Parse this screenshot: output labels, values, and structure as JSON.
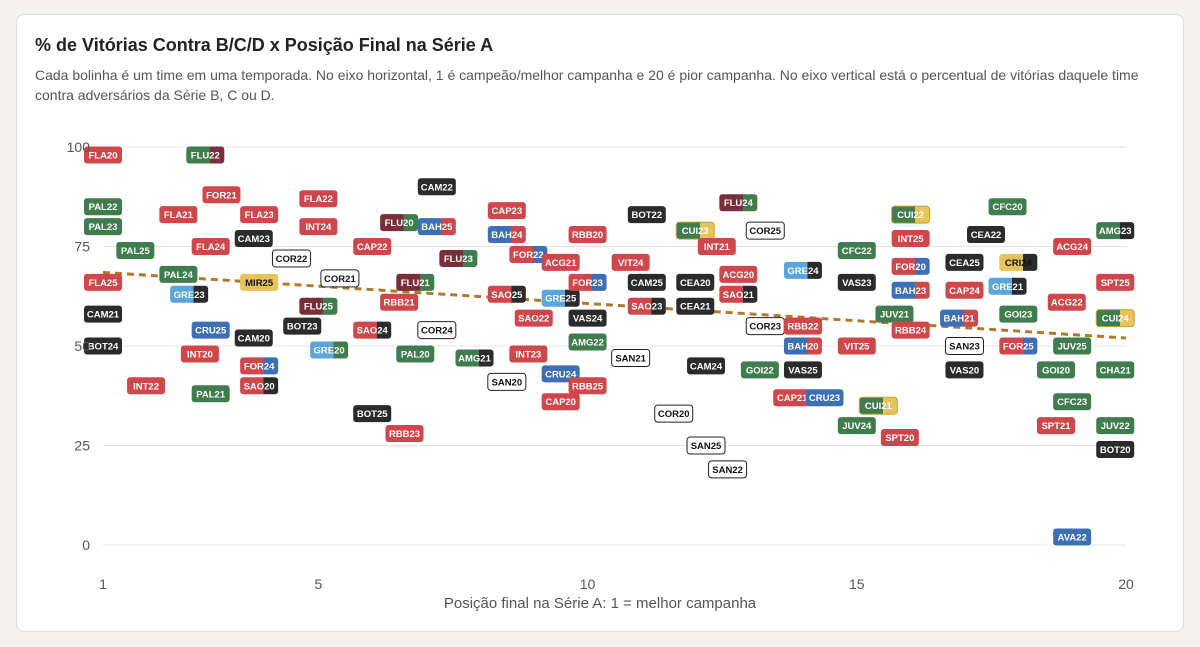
{
  "title": "% de Vitórias Contra B/C/D x Posição Final na Série A",
  "subtitle": "Cada bolinha é um time em uma temporada. No eixo horizontal, 1 é campeão/melhor campanha e 20 é pior campanha. No eixo vertical está o percentual de vitórias daquele time contra adversários da Série B, C ou D.",
  "colors": {
    "red": "#d0474b",
    "green": "#3f7d4e",
    "black": "#2b2b2b",
    "blue": "#3d6fb5",
    "lightblue": "#5aa6dc",
    "maroon": "#7a2e3b",
    "yellow": "#e8c25a",
    "white": "#ffffff",
    "trend": "#b07a2a",
    "grid": "#e4e4e4"
  },
  "chart_data": {
    "type": "scatter",
    "title": "% de Vitórias Contra B/C/D x Posição Final na Série A",
    "xlabel": "Posição final na Série A: 1 = melhor campanha",
    "ylabel": "",
    "xlim": [
      1,
      20
    ],
    "ylim": [
      0,
      100
    ],
    "xticks": [
      1,
      5,
      10,
      15,
      20
    ],
    "yticks": [
      0,
      25,
      50,
      75,
      100
    ],
    "grid": "horizontal",
    "trendline": [
      [
        1,
        68.5
      ],
      [
        20,
        52
      ]
    ],
    "points": [
      {
        "label": "FLA20",
        "x": 1,
        "y": 98,
        "style": "red"
      },
      {
        "label": "PAL22",
        "x": 1,
        "y": 85,
        "style": "green"
      },
      {
        "label": "PAL23",
        "x": 1,
        "y": 80,
        "style": "green"
      },
      {
        "label": "PAL25",
        "x": 1.6,
        "y": 74,
        "style": "green"
      },
      {
        "label": "FLA25",
        "x": 1,
        "y": 66,
        "style": "red"
      },
      {
        "label": "CAM21",
        "x": 1,
        "y": 58,
        "style": "black"
      },
      {
        "label": "BOT24",
        "x": 1,
        "y": 50,
        "style": "black"
      },
      {
        "label": "INT22",
        "x": 1.8,
        "y": 40,
        "style": "red"
      },
      {
        "label": "FLU22",
        "x": 2.9,
        "y": 98,
        "style": "green",
        "style2": "maroon"
      },
      {
        "label": "FLA21",
        "x": 2.4,
        "y": 83,
        "style": "red"
      },
      {
        "label": "FOR21",
        "x": 3.2,
        "y": 88,
        "style": "red"
      },
      {
        "label": "FLA24",
        "x": 3.0,
        "y": 75,
        "style": "red"
      },
      {
        "label": "PAL24",
        "x": 2.4,
        "y": 68,
        "style": "green"
      },
      {
        "label": "GRE23",
        "x": 2.6,
        "y": 63,
        "style": "lightblue",
        "style2": "black"
      },
      {
        "label": "CRU25",
        "x": 3.0,
        "y": 54,
        "style": "blue"
      },
      {
        "label": "INT20",
        "x": 2.8,
        "y": 48,
        "style": "red"
      },
      {
        "label": "PAL21",
        "x": 3.0,
        "y": 38,
        "style": "green"
      },
      {
        "label": "FLA23",
        "x": 3.9,
        "y": 83,
        "style": "red"
      },
      {
        "label": "CAM23",
        "x": 3.8,
        "y": 77,
        "style": "black"
      },
      {
        "label": "MIR25",
        "x": 3.9,
        "y": 66,
        "style": "yellow"
      },
      {
        "label": "CAM20",
        "x": 3.8,
        "y": 52,
        "style": "black"
      },
      {
        "label": "FOR24",
        "x": 3.9,
        "y": 45,
        "style": "red",
        "style2": "blue"
      },
      {
        "label": "SAO20",
        "x": 3.9,
        "y": 40,
        "style": "red",
        "style2": "black"
      },
      {
        "label": "COR22",
        "x": 4.5,
        "y": 72,
        "style": "white"
      },
      {
        "label": "BOT23",
        "x": 4.7,
        "y": 55,
        "style": "black"
      },
      {
        "label": "FLA22",
        "x": 5.0,
        "y": 87,
        "style": "red"
      },
      {
        "label": "INT24",
        "x": 5.0,
        "y": 80,
        "style": "red"
      },
      {
        "label": "FLU25",
        "x": 5.0,
        "y": 60,
        "style": "maroon",
        "style2": "green"
      },
      {
        "label": "GRE20",
        "x": 5.2,
        "y": 49,
        "style": "lightblue",
        "style2": "green"
      },
      {
        "label": "COR21",
        "x": 5.4,
        "y": 67,
        "style": "white"
      },
      {
        "label": "CAP22",
        "x": 6.0,
        "y": 75,
        "style": "red"
      },
      {
        "label": "FLU20",
        "x": 6.5,
        "y": 81,
        "style": "maroon",
        "style2": "green"
      },
      {
        "label": "SAO24",
        "x": 6.0,
        "y": 54,
        "style": "red",
        "style2": "black"
      },
      {
        "label": "BOT25",
        "x": 6.0,
        "y": 33,
        "style": "black"
      },
      {
        "label": "RBB21",
        "x": 6.5,
        "y": 61,
        "style": "red"
      },
      {
        "label": "FLU21",
        "x": 6.8,
        "y": 66,
        "style": "maroon",
        "style2": "green"
      },
      {
        "label": "RBB23",
        "x": 6.6,
        "y": 28,
        "style": "red"
      },
      {
        "label": "PAL20",
        "x": 6.8,
        "y": 48,
        "style": "green"
      },
      {
        "label": "CAM22",
        "x": 7.2,
        "y": 90,
        "style": "black"
      },
      {
        "label": "BAH25",
        "x": 7.2,
        "y": 80,
        "style": "blue",
        "style2": "red"
      },
      {
        "label": "COR24",
        "x": 7.2,
        "y": 54,
        "style": "white"
      },
      {
        "label": "FLU23",
        "x": 7.6,
        "y": 72,
        "style": "maroon",
        "style2": "green"
      },
      {
        "label": "AMG21",
        "x": 7.9,
        "y": 47,
        "style": "green",
        "style2": "black"
      },
      {
        "label": "CAP23",
        "x": 8.5,
        "y": 84,
        "style": "red"
      },
      {
        "label": "BAH24",
        "x": 8.5,
        "y": 78,
        "style": "blue",
        "style2": "red"
      },
      {
        "label": "SAO25",
        "x": 8.5,
        "y": 63,
        "style": "red",
        "style2": "black"
      },
      {
        "label": "SAN20",
        "x": 8.5,
        "y": 41,
        "style": "white"
      },
      {
        "label": "FOR22",
        "x": 8.9,
        "y": 73,
        "style": "red",
        "style2": "blue"
      },
      {
        "label": "INT23",
        "x": 8.9,
        "y": 48,
        "style": "red"
      },
      {
        "label": "SAO22",
        "x": 9.0,
        "y": 57,
        "style": "red"
      },
      {
        "label": "GRE25",
        "x": 9.5,
        "y": 62,
        "style": "lightblue",
        "style2": "black"
      },
      {
        "label": "ACG21",
        "x": 9.5,
        "y": 71,
        "style": "red"
      },
      {
        "label": "CAP20",
        "x": 9.5,
        "y": 36,
        "style": "red"
      },
      {
        "label": "CRU24",
        "x": 9.5,
        "y": 43,
        "style": "blue"
      },
      {
        "label": "RBB20",
        "x": 10.0,
        "y": 78,
        "style": "red"
      },
      {
        "label": "FOR23",
        "x": 10.0,
        "y": 66,
        "style": "red",
        "style2": "blue"
      },
      {
        "label": "VAS24",
        "x": 10.0,
        "y": 57,
        "style": "black"
      },
      {
        "label": "AMG22",
        "x": 10.0,
        "y": 51,
        "style": "green"
      },
      {
        "label": "RBB25",
        "x": 10.0,
        "y": 40,
        "style": "red"
      },
      {
        "label": "VIT24",
        "x": 10.8,
        "y": 71,
        "style": "red"
      },
      {
        "label": "SAN21",
        "x": 10.8,
        "y": 47,
        "style": "white"
      },
      {
        "label": "BOT22",
        "x": 11.1,
        "y": 83,
        "style": "black"
      },
      {
        "label": "CAM25",
        "x": 11.1,
        "y": 66,
        "style": "black"
      },
      {
        "label": "SAO23",
        "x": 11.1,
        "y": 60,
        "style": "red",
        "style2": "black"
      },
      {
        "label": "COR20",
        "x": 11.6,
        "y": 33,
        "style": "white"
      },
      {
        "label": "CUI23",
        "x": 12.0,
        "y": 79,
        "style": "green",
        "style2": "yellow"
      },
      {
        "label": "CEA20",
        "x": 12.0,
        "y": 66,
        "style": "black"
      },
      {
        "label": "CEA21",
        "x": 12.0,
        "y": 60,
        "style": "black"
      },
      {
        "label": "CAM24",
        "x": 12.2,
        "y": 45,
        "style": "black"
      },
      {
        "label": "SAN25",
        "x": 12.2,
        "y": 25,
        "style": "white"
      },
      {
        "label": "FLU24",
        "x": 12.8,
        "y": 86,
        "style": "maroon",
        "style2": "green"
      },
      {
        "label": "INT21",
        "x": 12.4,
        "y": 75,
        "style": "red"
      },
      {
        "label": "ACG20",
        "x": 12.8,
        "y": 68,
        "style": "red"
      },
      {
        "label": "SAO21",
        "x": 12.8,
        "y": 63,
        "style": "red",
        "style2": "black"
      },
      {
        "label": "SAN22",
        "x": 12.6,
        "y": 19,
        "style": "white"
      },
      {
        "label": "COR25",
        "x": 13.3,
        "y": 79,
        "style": "white"
      },
      {
        "label": "COR23",
        "x": 13.3,
        "y": 55,
        "style": "white"
      },
      {
        "label": "GOI22",
        "x": 13.2,
        "y": 44,
        "style": "green"
      },
      {
        "label": "CAP21",
        "x": 13.8,
        "y": 37,
        "style": "red"
      },
      {
        "label": "GRE24",
        "x": 14.0,
        "y": 69,
        "style": "lightblue",
        "style2": "black"
      },
      {
        "label": "RBB22",
        "x": 14.0,
        "y": 55,
        "style": "red"
      },
      {
        "label": "BAH20",
        "x": 14.0,
        "y": 50,
        "style": "blue",
        "style2": "red"
      },
      {
        "label": "VAS25",
        "x": 14.0,
        "y": 44,
        "style": "black"
      },
      {
        "label": "CRU23",
        "x": 14.4,
        "y": 37,
        "style": "blue"
      },
      {
        "label": "CFC22",
        "x": 15.0,
        "y": 74,
        "style": "green"
      },
      {
        "label": "VAS23",
        "x": 15.0,
        "y": 66,
        "style": "black"
      },
      {
        "label": "VIT25",
        "x": 15.0,
        "y": 50,
        "style": "red"
      },
      {
        "label": "JUV24",
        "x": 15.0,
        "y": 30,
        "style": "green"
      },
      {
        "label": "JUV21",
        "x": 15.7,
        "y": 58,
        "style": "green"
      },
      {
        "label": "CUI21",
        "x": 15.4,
        "y": 35,
        "style": "green",
        "style2": "yellow"
      },
      {
        "label": "SPT20",
        "x": 15.8,
        "y": 27,
        "style": "red"
      },
      {
        "label": "CUI22",
        "x": 16.0,
        "y": 83,
        "style": "green",
        "style2": "yellow"
      },
      {
        "label": "INT25",
        "x": 16.0,
        "y": 77,
        "style": "red"
      },
      {
        "label": "FOR20",
        "x": 16.0,
        "y": 70,
        "style": "red",
        "style2": "blue"
      },
      {
        "label": "BAH23",
        "x": 16.0,
        "y": 64,
        "style": "blue",
        "style2": "red"
      },
      {
        "label": "RBB24",
        "x": 16.0,
        "y": 54,
        "style": "red"
      },
      {
        "label": "BAH21",
        "x": 16.9,
        "y": 57,
        "style": "blue",
        "style2": "red"
      },
      {
        "label": "CEA22",
        "x": 17.4,
        "y": 78,
        "style": "black"
      },
      {
        "label": "CEA25",
        "x": 17.0,
        "y": 71,
        "style": "black"
      },
      {
        "label": "CAP24",
        "x": 17.0,
        "y": 64,
        "style": "red"
      },
      {
        "label": "SAN23",
        "x": 17.0,
        "y": 50,
        "style": "white"
      },
      {
        "label": "VAS20",
        "x": 17.0,
        "y": 44,
        "style": "black"
      },
      {
        "label": "CFC20",
        "x": 17.8,
        "y": 85,
        "style": "green"
      },
      {
        "label": "CRI24",
        "x": 18.0,
        "y": 71,
        "style": "yellow",
        "style2": "black"
      },
      {
        "label": "GRE21",
        "x": 17.8,
        "y": 65,
        "style": "lightblue",
        "style2": "black"
      },
      {
        "label": "GOI23",
        "x": 18.0,
        "y": 58,
        "style": "green"
      },
      {
        "label": "FOR25",
        "x": 18.0,
        "y": 50,
        "style": "red",
        "style2": "blue"
      },
      {
        "label": "ACG22",
        "x": 18.9,
        "y": 61,
        "style": "red"
      },
      {
        "label": "GOI20",
        "x": 18.7,
        "y": 44,
        "style": "green"
      },
      {
        "label": "SPT21",
        "x": 18.7,
        "y": 30,
        "style": "red"
      },
      {
        "label": "ACG24",
        "x": 19.0,
        "y": 75,
        "style": "red"
      },
      {
        "label": "JUV25",
        "x": 19.0,
        "y": 50,
        "style": "green"
      },
      {
        "label": "CFC23",
        "x": 19.0,
        "y": 36,
        "style": "green"
      },
      {
        "label": "AVA22",
        "x": 19.0,
        "y": 2,
        "style": "blue"
      },
      {
        "label": "AMG23",
        "x": 19.8,
        "y": 79,
        "style": "green",
        "style2": "black"
      },
      {
        "label": "SPT25",
        "x": 19.8,
        "y": 66,
        "style": "red"
      },
      {
        "label": "CUI24",
        "x": 19.8,
        "y": 57,
        "style": "green",
        "style2": "yellow"
      },
      {
        "label": "CHA21",
        "x": 19.8,
        "y": 44,
        "style": "green"
      },
      {
        "label": "JUV22",
        "x": 19.8,
        "y": 30,
        "style": "green"
      },
      {
        "label": "BOT20",
        "x": 19.8,
        "y": 24,
        "style": "black"
      }
    ]
  }
}
